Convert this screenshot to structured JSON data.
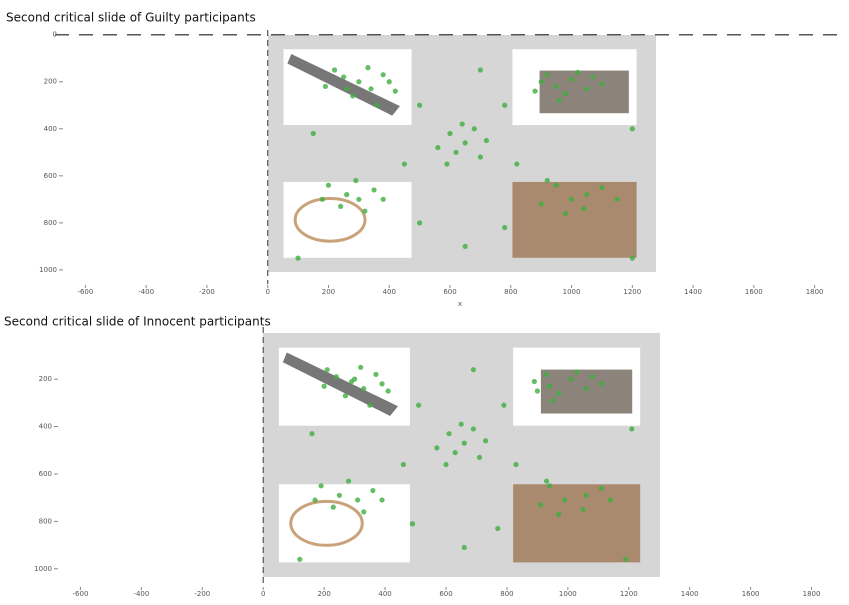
{
  "chart_data": [
    {
      "type": "scatter",
      "title": "Second critical slide of Guilty participants",
      "xlabel": "x",
      "color": "#3fae3f",
      "invert_y": true,
      "axhline": 0,
      "axvline": 0,
      "xlim": [
        -700,
        1900
      ],
      "xticks": [
        -600,
        -400,
        -200,
        0,
        200,
        400,
        600,
        800,
        1000,
        1200,
        1400,
        1600,
        1800
      ],
      "ylim": [
        -20,
        1060
      ],
      "yticks": [
        0,
        200,
        400,
        600,
        800,
        1000
      ],
      "x": [
        250,
        300,
        340,
        220,
        380,
        280,
        420,
        190,
        330,
        360,
        260,
        400,
        900,
        950,
        1000,
        1050,
        980,
        920,
        1100,
        1020,
        960,
        880,
        1070,
        600,
        650,
        620,
        680,
        560,
        700,
        640,
        590,
        720,
        200,
        260,
        300,
        350,
        240,
        320,
        380,
        180,
        290,
        950,
        1000,
        1050,
        900,
        1100,
        980,
        1040,
        920,
        1150,
        500,
        780,
        500,
        780,
        650,
        100,
        1200,
        700,
        450,
        820,
        150,
        1200
      ],
      "values": [
        180,
        200,
        230,
        150,
        170,
        260,
        240,
        220,
        140,
        300,
        230,
        200,
        200,
        220,
        190,
        230,
        250,
        170,
        210,
        160,
        280,
        240,
        180,
        420,
        460,
        500,
        400,
        480,
        520,
        380,
        550,
        450,
        640,
        680,
        700,
        660,
        730,
        750,
        700,
        700,
        620,
        640,
        700,
        680,
        720,
        650,
        760,
        740,
        620,
        700,
        300,
        300,
        800,
        820,
        900,
        950,
        950,
        150,
        550,
        550,
        420,
        400
      ]
    },
    {
      "type": "scatter",
      "title": "Second critical slide of Innocent participants",
      "color": "#3fae3f",
      "invert_y": true,
      "axvline": 0,
      "xlim": [
        -700,
        1900
      ],
      "xticks": [
        -600,
        -400,
        -200,
        0,
        200,
        400,
        600,
        800,
        1000,
        1200,
        1400,
        1600,
        1800
      ],
      "ylim": [
        -20,
        1060
      ],
      "yticks": [
        200,
        400,
        600,
        800,
        1000
      ],
      "x": [
        240,
        290,
        330,
        210,
        370,
        270,
        410,
        200,
        320,
        350,
        300,
        390,
        890,
        940,
        1010,
        1060,
        970,
        930,
        1110,
        1030,
        950,
        900,
        1080,
        610,
        660,
        630,
        690,
        570,
        710,
        650,
        600,
        730,
        190,
        250,
        310,
        360,
        230,
        330,
        390,
        170,
        280,
        940,
        990,
        1060,
        910,
        1110,
        970,
        1050,
        930,
        1140,
        510,
        790,
        490,
        770,
        660,
        120,
        1190,
        690,
        460,
        830,
        160,
        1210
      ],
      "values": [
        190,
        210,
        240,
        160,
        180,
        270,
        250,
        230,
        150,
        310,
        200,
        220,
        210,
        230,
        200,
        240,
        260,
        180,
        220,
        170,
        290,
        250,
        190,
        430,
        470,
        510,
        410,
        490,
        530,
        390,
        560,
        460,
        650,
        690,
        710,
        670,
        740,
        760,
        710,
        710,
        630,
        650,
        710,
        690,
        730,
        660,
        770,
        750,
        630,
        710,
        310,
        310,
        810,
        830,
        910,
        960,
        960,
        160,
        560,
        560,
        430,
        410
      ]
    }
  ]
}
